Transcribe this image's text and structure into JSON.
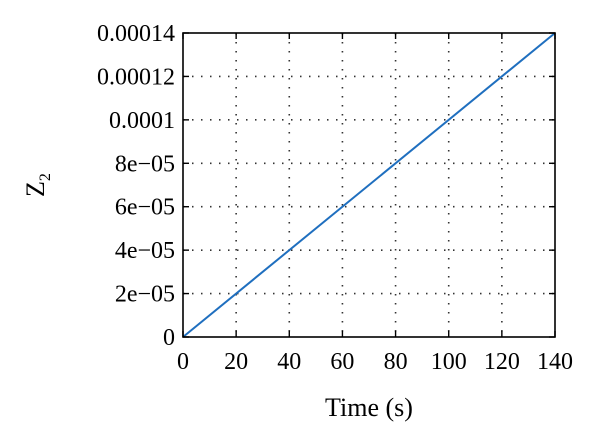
{
  "chart_data": {
    "type": "line",
    "title": "",
    "xlabel": "Time (s)",
    "ylabel_main": "Z",
    "ylabel_sub": "2",
    "xlim": [
      0,
      140
    ],
    "ylim": [
      0,
      0.00014
    ],
    "x_ticks": [
      0,
      20,
      40,
      60,
      80,
      100,
      120,
      140
    ],
    "x_tick_labels": [
      "0",
      "20",
      "40",
      "60",
      "80",
      "100",
      "120",
      "140"
    ],
    "y_ticks": [
      0,
      2e-05,
      4e-05,
      6e-05,
      8e-05,
      0.0001,
      0.00012,
      0.00014
    ],
    "y_tick_labels": [
      "0",
      "2e−05",
      "4e−05",
      "6e−05",
      "8e−05",
      "0.0001",
      "0.00012",
      "0.00014"
    ],
    "grid": true,
    "series": [
      {
        "color": "#1f6fbf",
        "x": [
          0,
          140
        ],
        "y": [
          0,
          0.00014
        ]
      }
    ]
  }
}
